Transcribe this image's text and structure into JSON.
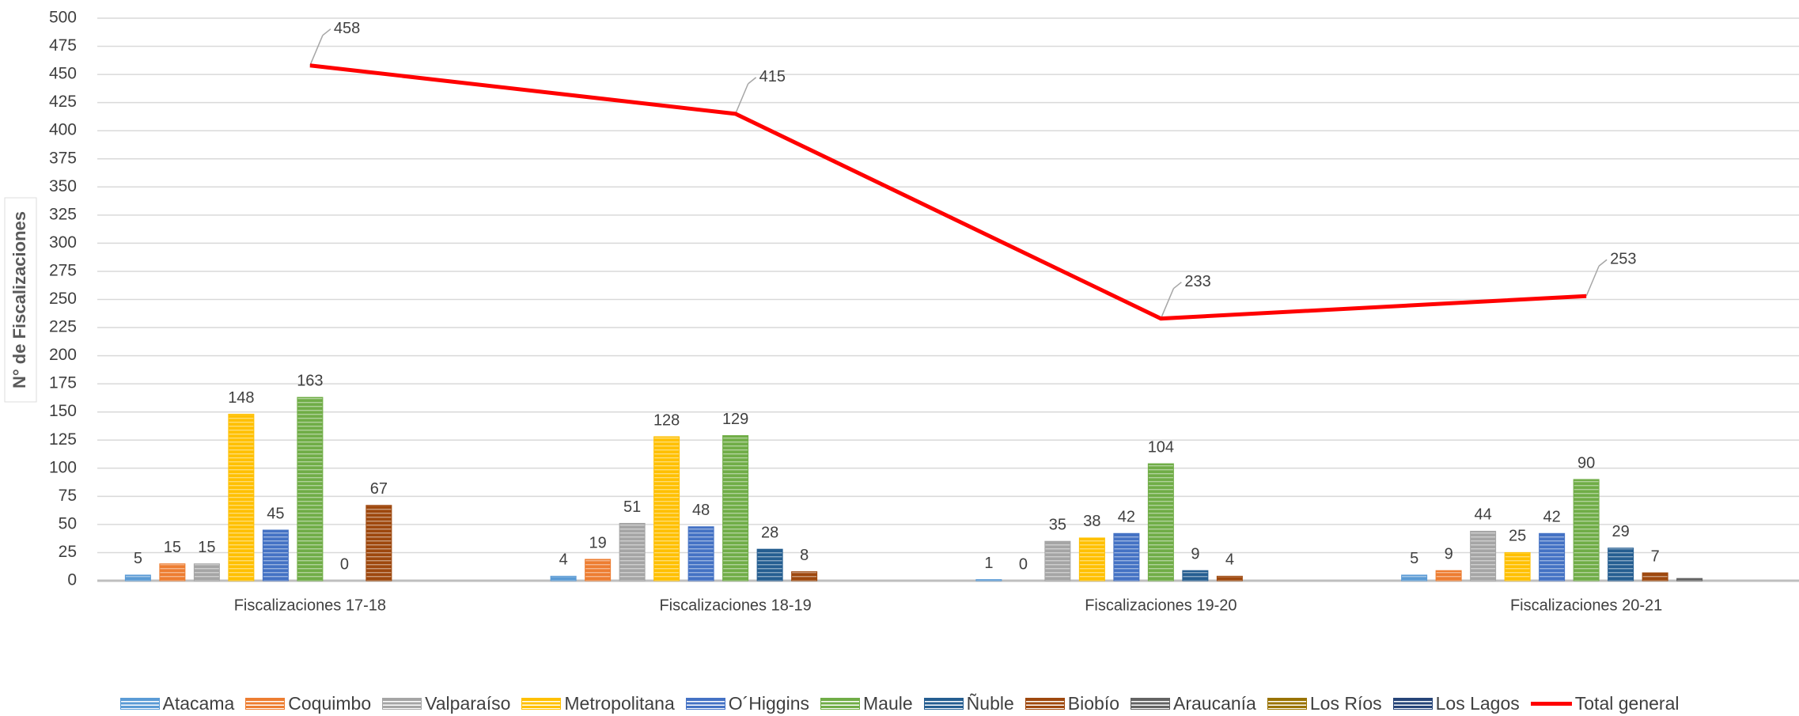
{
  "chart_data": {
    "type": "bar",
    "y_axis_label": "N° de Fiscalizaciones",
    "categories": [
      "Fiscalizaciones 17-18",
      "Fiscalizaciones 18-19",
      "Fiscalizaciones 19-20",
      "Fiscalizaciones 20-21"
    ],
    "ylim": [
      0,
      500
    ],
    "yticks": [
      0,
      25,
      50,
      75,
      100,
      125,
      150,
      175,
      200,
      225,
      250,
      275,
      300,
      325,
      350,
      375,
      400,
      425,
      450,
      475,
      500
    ],
    "grid": true,
    "legend": "bottom",
    "series": [
      {
        "name": "Atacama",
        "color": "#5b9bd5",
        "values": [
          5,
          4,
          1,
          5
        ]
      },
      {
        "name": "Coquimbo",
        "color": "#ed7d31",
        "values": [
          15,
          19,
          0,
          9
        ]
      },
      {
        "name": "Valparaíso",
        "color": "#a5a5a5",
        "values": [
          15,
          51,
          35,
          44
        ]
      },
      {
        "name": "Metropolitana",
        "color": "#ffc000",
        "values": [
          148,
          128,
          38,
          25
        ]
      },
      {
        "name": "O´Higgins",
        "color": "#4472c4",
        "values": [
          45,
          48,
          42,
          42
        ]
      },
      {
        "name": "Maule",
        "color": "#70ad47",
        "values": [
          163,
          129,
          104,
          90
        ]
      },
      {
        "name": "Ñuble",
        "color": "#255e91",
        "values": [
          0,
          28,
          9,
          29
        ]
      },
      {
        "name": "Biobío",
        "color": "#9e480e",
        "values": [
          67,
          8,
          4,
          7
        ]
      },
      {
        "name": "Araucanía",
        "color": "#636363",
        "values": [
          null,
          null,
          null,
          2
        ],
        "show_labels": false
      },
      {
        "name": "Los Ríos",
        "color": "#997300",
        "values": [
          null,
          null,
          null,
          null
        ]
      },
      {
        "name": "Los Lagos",
        "color": "#264478",
        "values": [
          null,
          null,
          null,
          null
        ]
      },
      {
        "name": "Total general",
        "color": "#ff0000",
        "type": "line",
        "values": [
          458,
          415,
          233,
          253
        ]
      }
    ]
  }
}
